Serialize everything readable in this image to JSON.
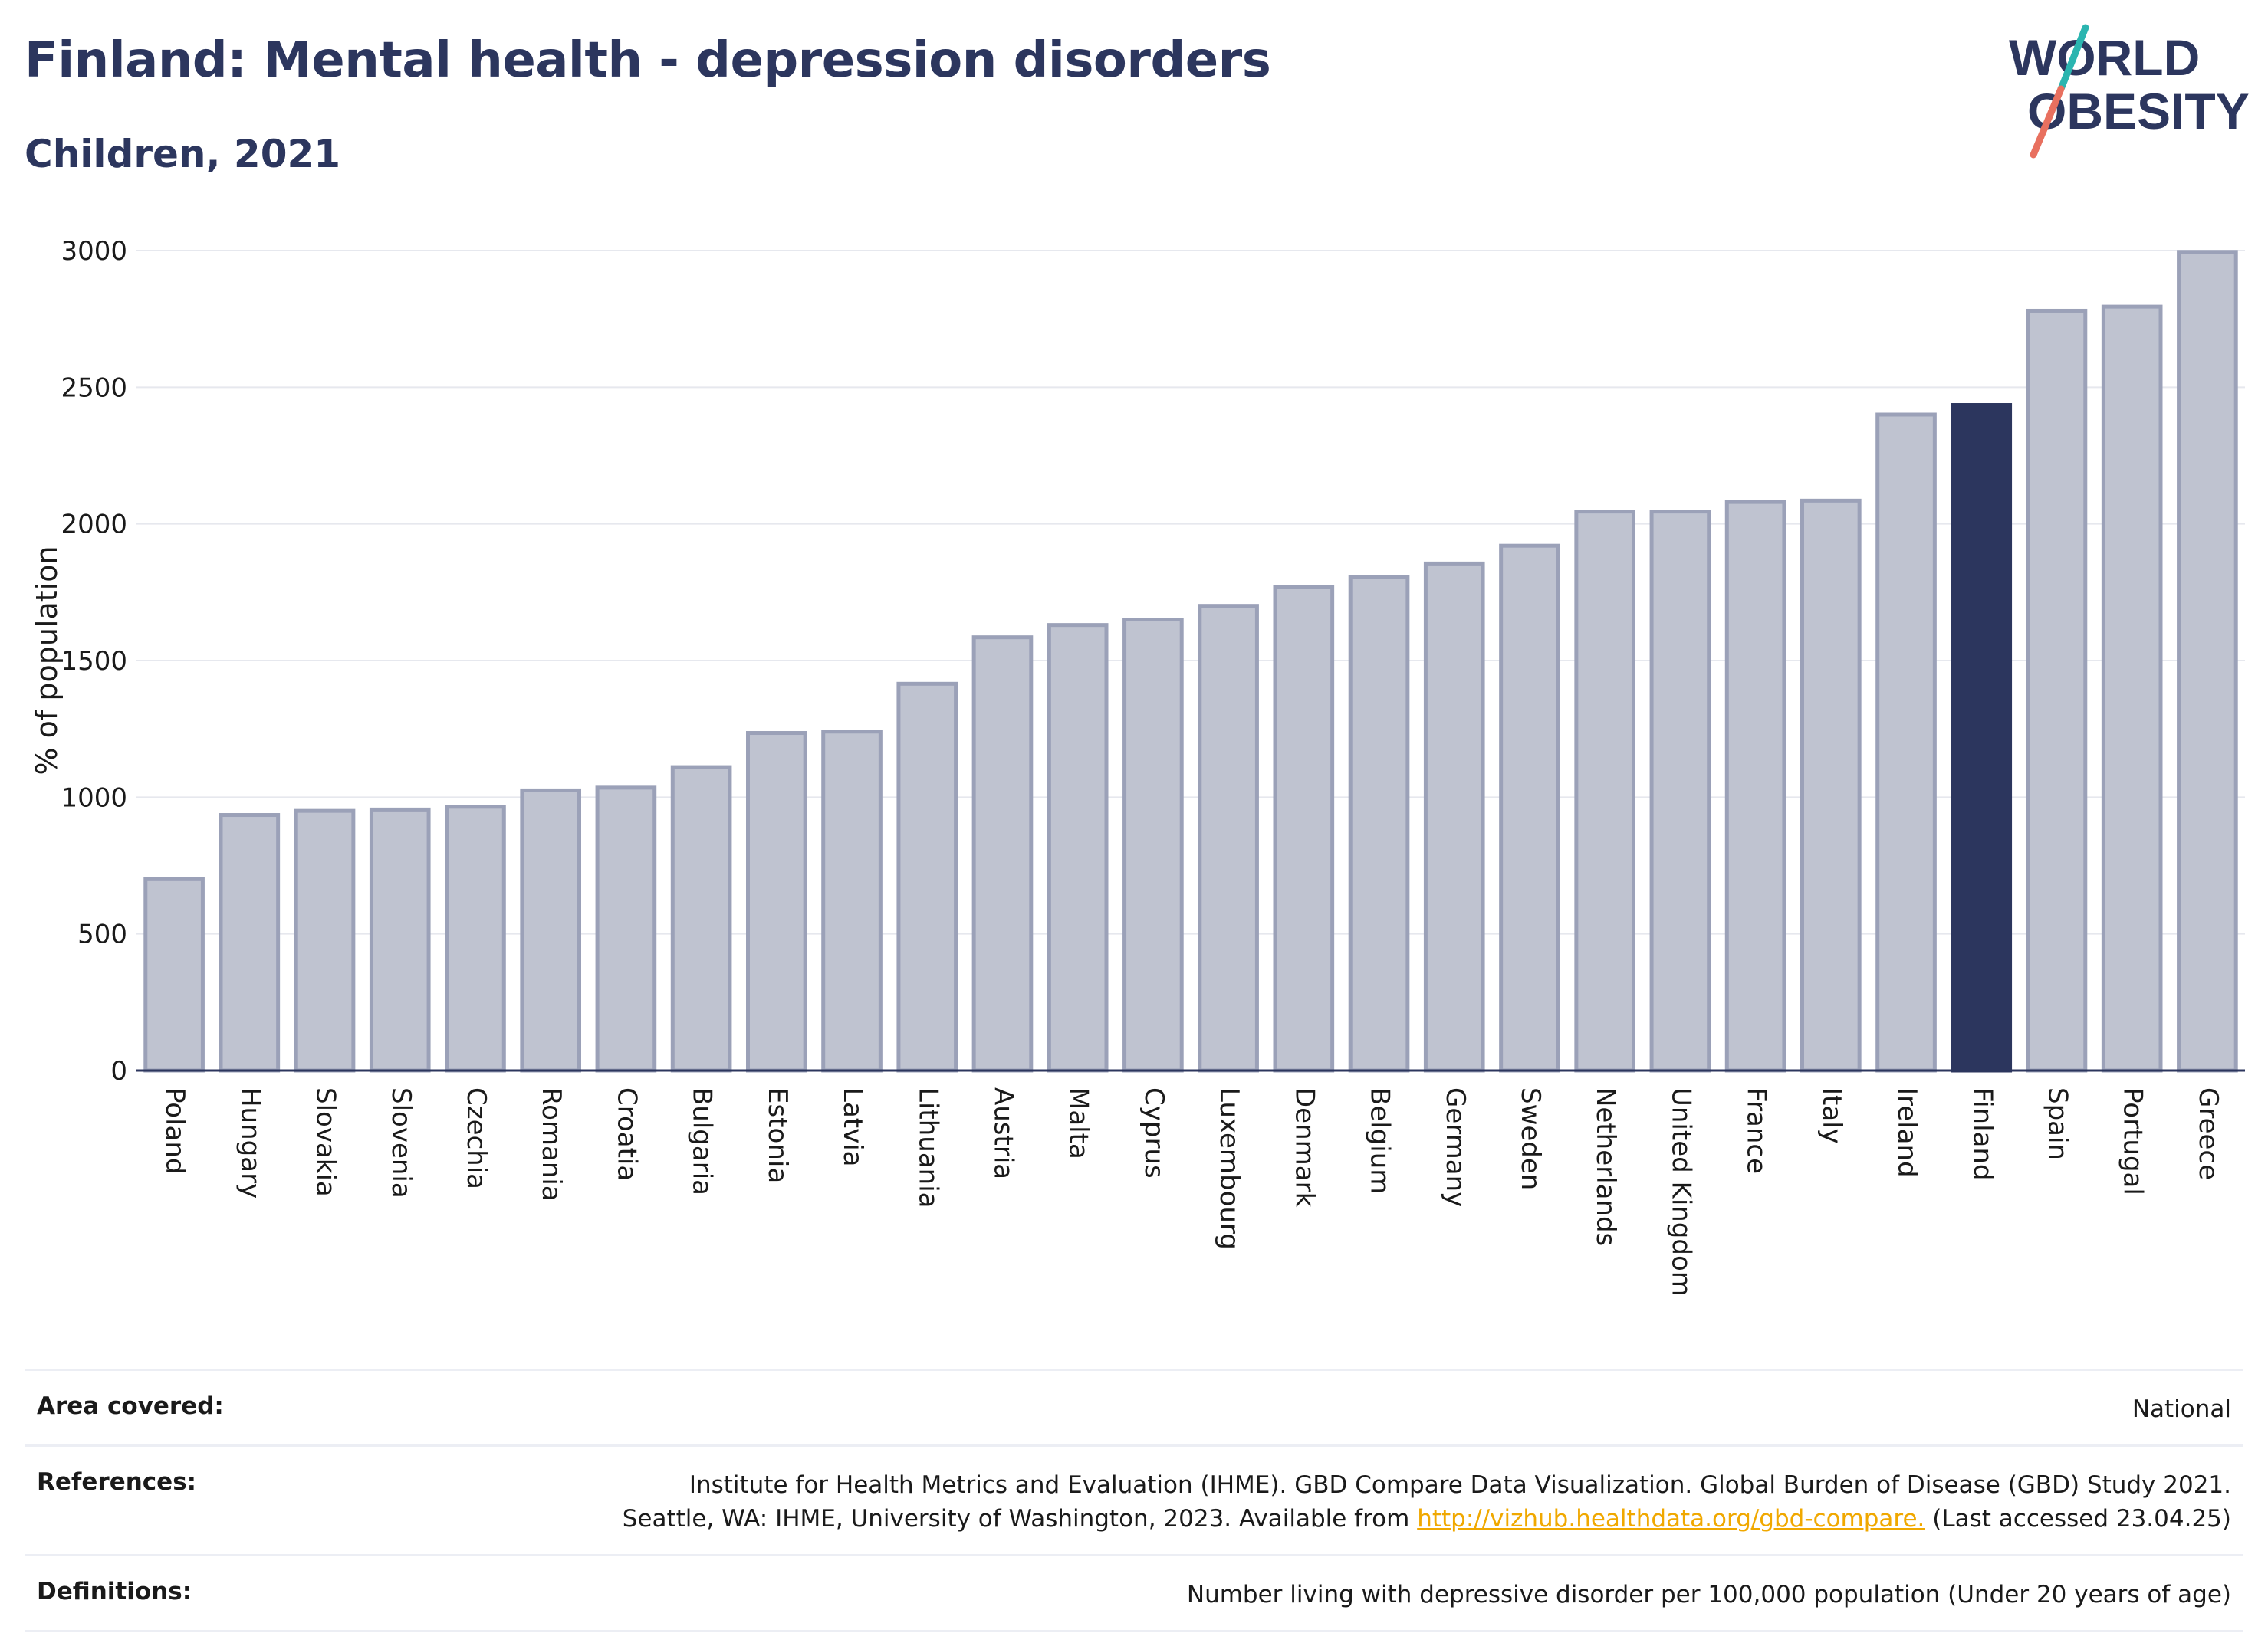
{
  "header": {
    "title": "Finland: Mental health - depression disorders",
    "subtitle": "Children, 2021",
    "logo_line1": "WORLD",
    "logo_line2": "OBESITY"
  },
  "colors": {
    "title": "#2c365e",
    "bar": "#bfc3d0",
    "bar_outline": "#9ba1b8",
    "highlight": "#2c365e",
    "logo_teal": "#2bb5b0",
    "logo_coral": "#e8705f",
    "link": "#f0a800"
  },
  "chart_data": {
    "type": "bar",
    "ylabel": "% of population",
    "ylim": [
      0,
      3000
    ],
    "yticks": [
      0,
      500,
      1000,
      1500,
      2000,
      2500,
      3000
    ],
    "grid": true,
    "highlight": "Finland",
    "categories": [
      "Poland",
      "Hungary",
      "Slovakia",
      "Slovenia",
      "Czechia",
      "Romania",
      "Croatia",
      "Bulgaria",
      "Estonia",
      "Latvia",
      "Lithuania",
      "Austria",
      "Malta",
      "Cyprus",
      "Luxembourg",
      "Denmark",
      "Belgium",
      "Germany",
      "Sweden",
      "Netherlands",
      "United Kingdom",
      "France",
      "Italy",
      "Ireland",
      "Finland",
      "Spain",
      "Portugal",
      "Greece"
    ],
    "values": [
      700,
      935,
      950,
      955,
      965,
      1025,
      1035,
      1110,
      1235,
      1240,
      1415,
      1585,
      1630,
      1650,
      1700,
      1770,
      1805,
      1855,
      1920,
      2045,
      2045,
      2080,
      2085,
      2400,
      2435,
      2780,
      2795,
      2995
    ]
  },
  "info": {
    "area_label": "Area covered:",
    "area_value": "National",
    "references_label": "References:",
    "references_line1": "Institute for Health Metrics and Evaluation (IHME). GBD Compare Data Visualization. Global Burden of Disease (GBD) Study 2021.",
    "references_line2_pre": "Seattle, WA: IHME, University of Washington, 2023. Available from",
    "references_link": "http://vizhub.healthdata.org/gbd-compare.",
    "references_line2_post": "(Last accessed 23.04.25)",
    "definitions_label": "Definitions:",
    "definitions_value": "Number living with depressive disorder per 100,000 population (Under 20 years of age)"
  }
}
